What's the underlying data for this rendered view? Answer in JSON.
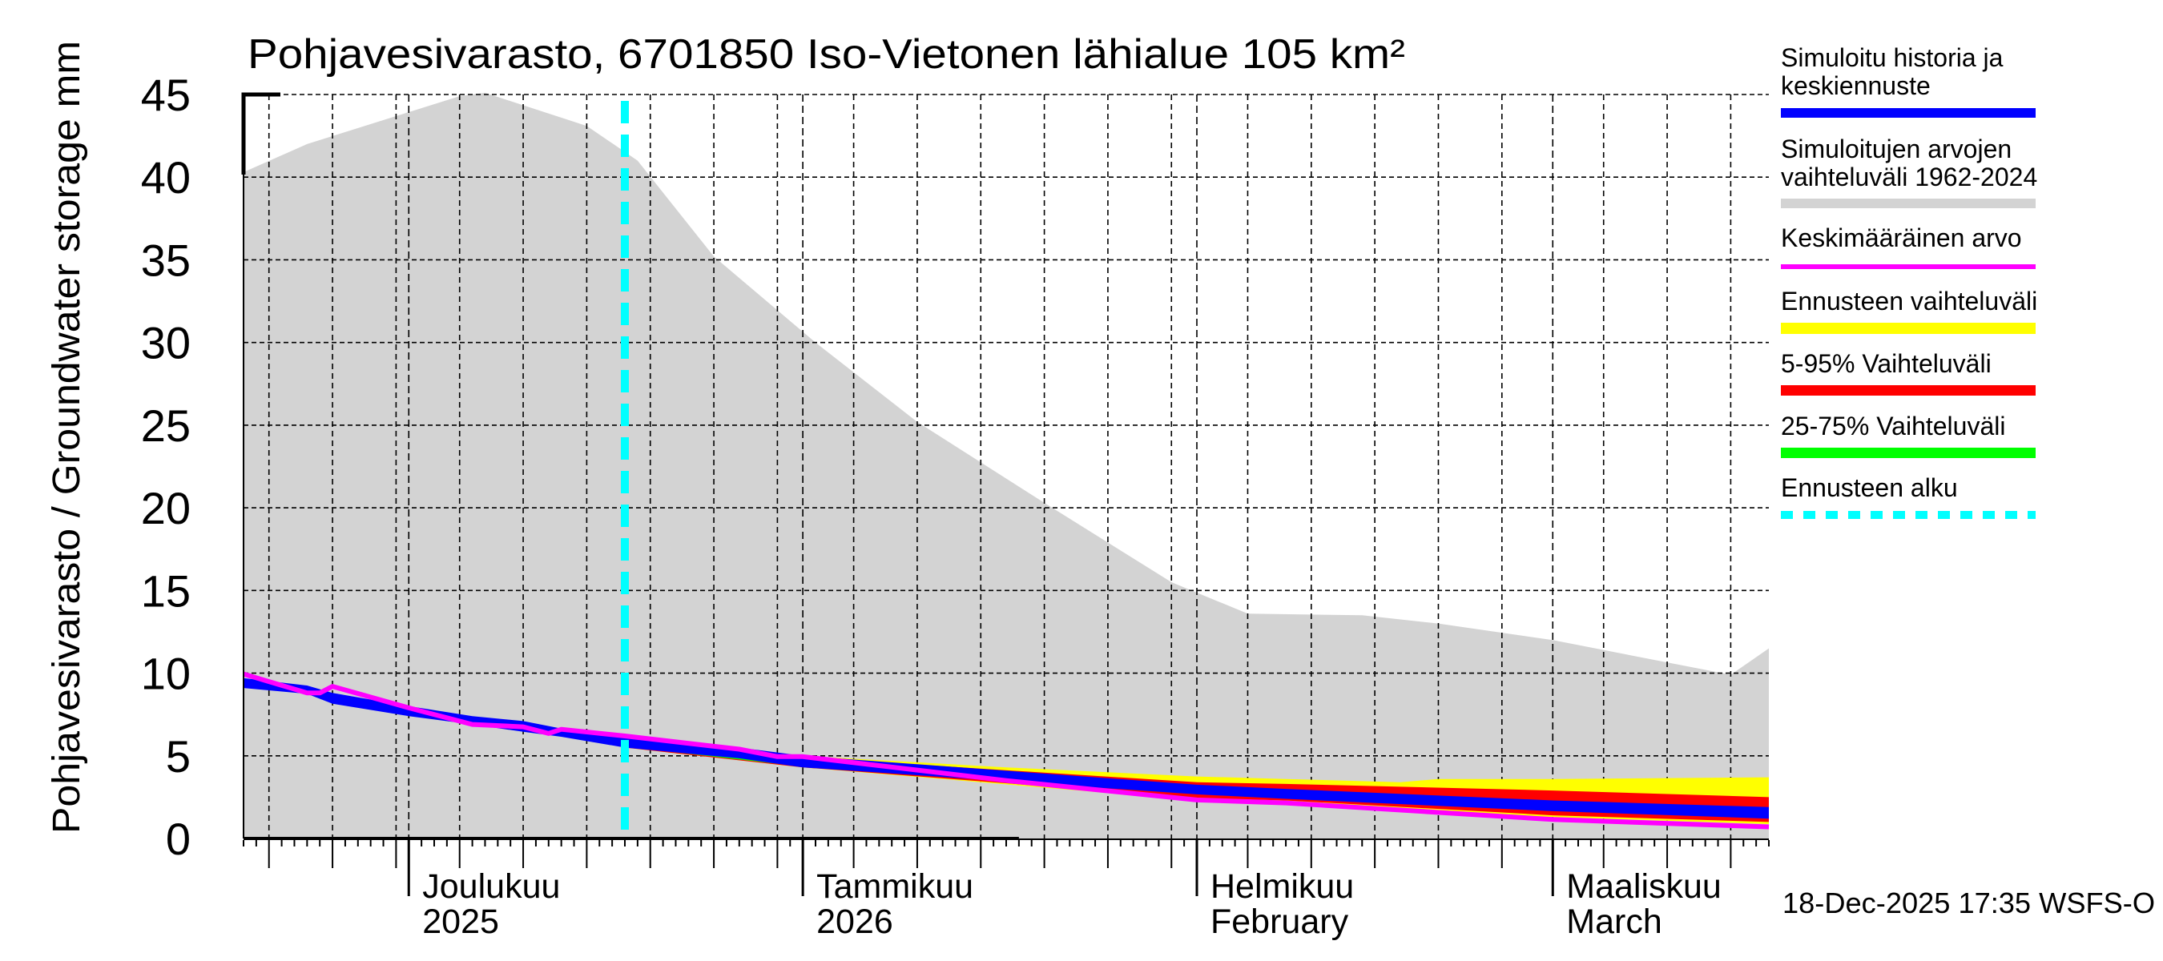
{
  "chart_data": {
    "type": "area",
    "title": "Pohjavesivarasto, 6701850 Iso-Vietonen lähialue 105 km²",
    "ylabel": "Pohjavesivarasto / Groundwater storage   mm",
    "xlabel": "",
    "ylim": [
      0,
      45
    ],
    "yticks": [
      "0",
      "5",
      "10",
      "15",
      "20",
      "25",
      "30",
      "35",
      "40",
      "45"
    ],
    "grid": true,
    "legend_position": "right",
    "x_start": "2025-11-18",
    "x_end": "2026-03-18",
    "forecast_start": "2025-12-18",
    "month_labels": [
      {
        "date": "2025-12-01",
        "line1": "Joulukuu",
        "line2": "2025"
      },
      {
        "date": "2026-01-01",
        "line1": "Tammikuu",
        "line2": "2026"
      },
      {
        "date": "2026-02-01",
        "line1": "Helmikuu",
        "line2": "February"
      },
      {
        "date": "2026-03-01",
        "line1": "Maaliskuu",
        "line2": "March"
      }
    ],
    "colors": {
      "history": "#0000ff",
      "range": "#d3d3d3",
      "mean": "#ff00ff",
      "forecast_range": "#ffff00",
      "p5_95": "#ff0000",
      "p25_75": "#00ff00",
      "forecast_start": "#00ffff"
    },
    "series": [
      {
        "name": "Simuloitujen arvojen vaihteluväli 1962-2024",
        "kind": "band",
        "upper": [
          [
            "2025-11-18",
            40.3
          ],
          [
            "2025-11-23",
            42.0
          ],
          [
            "2025-12-05",
            44.9
          ],
          [
            "2025-12-07",
            45.1
          ],
          [
            "2025-12-15",
            43.1
          ],
          [
            "2025-12-19",
            41.0
          ],
          [
            "2025-12-25",
            35.2
          ],
          [
            "2026-01-02",
            30.0
          ],
          [
            "2026-01-10",
            25.2
          ],
          [
            "2026-01-20",
            20.3
          ],
          [
            "2026-01-30",
            15.5
          ],
          [
            "2026-02-05",
            13.6
          ],
          [
            "2026-02-14",
            13.5
          ],
          [
            "2026-02-20",
            13.0
          ],
          [
            "2026-03-01",
            12.0
          ],
          [
            "2026-03-15",
            9.9
          ],
          [
            "2026-03-18",
            11.5
          ]
        ],
        "lower": [
          [
            "2025-11-18",
            0.0
          ],
          [
            "2026-03-18",
            0.0
          ]
        ]
      },
      {
        "name": "Ennusteen vaihteluväli",
        "kind": "band",
        "upper": [
          [
            "2025-12-18",
            6.2
          ],
          [
            "2026-01-01",
            5.0
          ],
          [
            "2026-01-17",
            4.3
          ],
          [
            "2026-02-01",
            3.75
          ],
          [
            "2026-02-08",
            3.6
          ],
          [
            "2026-02-17",
            3.4
          ],
          [
            "2026-02-20",
            3.6
          ],
          [
            "2026-03-01",
            3.6
          ],
          [
            "2026-03-18",
            3.7
          ]
        ],
        "lower": [
          [
            "2025-12-18",
            5.5
          ],
          [
            "2026-01-01",
            4.3
          ],
          [
            "2026-02-01",
            2.3
          ],
          [
            "2026-03-01",
            1.3
          ],
          [
            "2026-03-18",
            0.87
          ]
        ]
      },
      {
        "name": "5-95% Vaihteluväli",
        "kind": "band",
        "upper": [
          [
            "2025-12-18",
            6.1
          ],
          [
            "2026-01-01",
            4.9
          ],
          [
            "2026-02-01",
            3.4
          ],
          [
            "2026-02-08",
            3.3
          ],
          [
            "2026-03-01",
            2.9
          ],
          [
            "2026-03-18",
            2.5
          ]
        ],
        "lower": [
          [
            "2025-12-18",
            5.5
          ],
          [
            "2026-01-01",
            4.3
          ],
          [
            "2026-02-01",
            2.43
          ],
          [
            "2026-02-08",
            2.3
          ],
          [
            "2026-03-01",
            1.4
          ],
          [
            "2026-03-18",
            1.0
          ]
        ]
      },
      {
        "name": "25-75% Vaihteluväli",
        "kind": "band",
        "upper": [
          [
            "2025-12-18",
            6.1
          ],
          [
            "2026-01-01",
            4.95
          ],
          [
            "2026-02-01",
            3.2
          ],
          [
            "2026-03-01",
            2.25
          ],
          [
            "2026-03-18",
            1.85
          ]
        ],
        "lower": [
          [
            "2025-12-18",
            5.55
          ],
          [
            "2026-01-01",
            4.35
          ],
          [
            "2026-02-01",
            2.7
          ],
          [
            "2026-03-01",
            1.7
          ],
          [
            "2026-03-18",
            1.25
          ]
        ]
      },
      {
        "name": "Simuloitu historia ja keskiennuste",
        "kind": "band",
        "upper": [
          [
            "2025-11-18",
            9.7
          ],
          [
            "2025-11-23",
            9.25
          ],
          [
            "2025-11-25",
            8.8
          ],
          [
            "2025-12-01",
            8.0
          ],
          [
            "2025-12-06",
            7.4
          ],
          [
            "2025-12-10",
            7.1
          ],
          [
            "2025-12-13",
            6.65
          ],
          [
            "2025-12-18",
            6.15
          ],
          [
            "2025-12-27",
            5.5
          ],
          [
            "2026-01-01",
            5.0
          ],
          [
            "2026-02-01",
            3.25
          ],
          [
            "2026-02-08",
            3.0
          ],
          [
            "2026-03-01",
            2.3
          ],
          [
            "2026-03-18",
            1.9
          ]
        ],
        "lower": [
          [
            "2025-11-18",
            9.1
          ],
          [
            "2025-11-23",
            8.75
          ],
          [
            "2025-11-25",
            8.15
          ],
          [
            "2025-12-01",
            7.4
          ],
          [
            "2025-12-06",
            6.9
          ],
          [
            "2025-12-10",
            6.45
          ],
          [
            "2025-12-13",
            6.15
          ],
          [
            "2025-12-18",
            5.5
          ],
          [
            "2025-12-27",
            4.85
          ],
          [
            "2026-01-01",
            4.3
          ],
          [
            "2026-02-01",
            2.67
          ],
          [
            "2026-02-08",
            2.4
          ],
          [
            "2026-03-01",
            1.65
          ],
          [
            "2026-03-18",
            1.2
          ]
        ]
      },
      {
        "name": "Keskimääräinen arvo",
        "kind": "line",
        "values": [
          [
            "2025-11-18",
            9.95
          ],
          [
            "2025-11-23",
            8.8
          ],
          [
            "2025-11-24",
            8.8
          ],
          [
            "2025-11-25",
            9.2
          ],
          [
            "2025-12-01",
            7.9
          ],
          [
            "2025-12-06",
            6.9
          ],
          [
            "2025-12-10",
            6.75
          ],
          [
            "2025-12-12",
            6.35
          ],
          [
            "2025-12-13",
            6.6
          ],
          [
            "2025-12-18",
            6.2
          ],
          [
            "2025-12-27",
            5.4
          ],
          [
            "2025-12-30",
            4.95
          ],
          [
            "2026-01-01",
            4.95
          ],
          [
            "2026-01-17",
            3.5
          ],
          [
            "2026-02-01",
            2.33
          ],
          [
            "2026-02-08",
            2.15
          ],
          [
            "2026-03-01",
            1.15
          ],
          [
            "2026-03-18",
            0.7
          ]
        ]
      }
    ],
    "legend": [
      {
        "key": "history",
        "lines": [
          "Simuloitu historia ja",
          "keskiennuste"
        ],
        "style": "thick"
      },
      {
        "key": "range",
        "lines": [
          "Simuloitujen arvojen",
          "vaihteluväli 1962-2024"
        ],
        "style": "thick"
      },
      {
        "key": "mean",
        "lines": [
          "Keskimääräinen arvo"
        ],
        "style": "thin"
      },
      {
        "key": "forecast_range",
        "lines": [
          "Ennusteen vaihteluväli"
        ],
        "style": "thick"
      },
      {
        "key": "p5_95",
        "lines": [
          "5-95% Vaihteluväli"
        ],
        "style": "thick"
      },
      {
        "key": "p25_75",
        "lines": [
          "25-75% Vaihteluväli"
        ],
        "style": "thick"
      },
      {
        "key": "forecast_start",
        "lines": [
          "Ennusteen alku"
        ],
        "style": "dashed"
      }
    ],
    "footer": "18-Dec-2025 17:35 WSFS-O"
  }
}
